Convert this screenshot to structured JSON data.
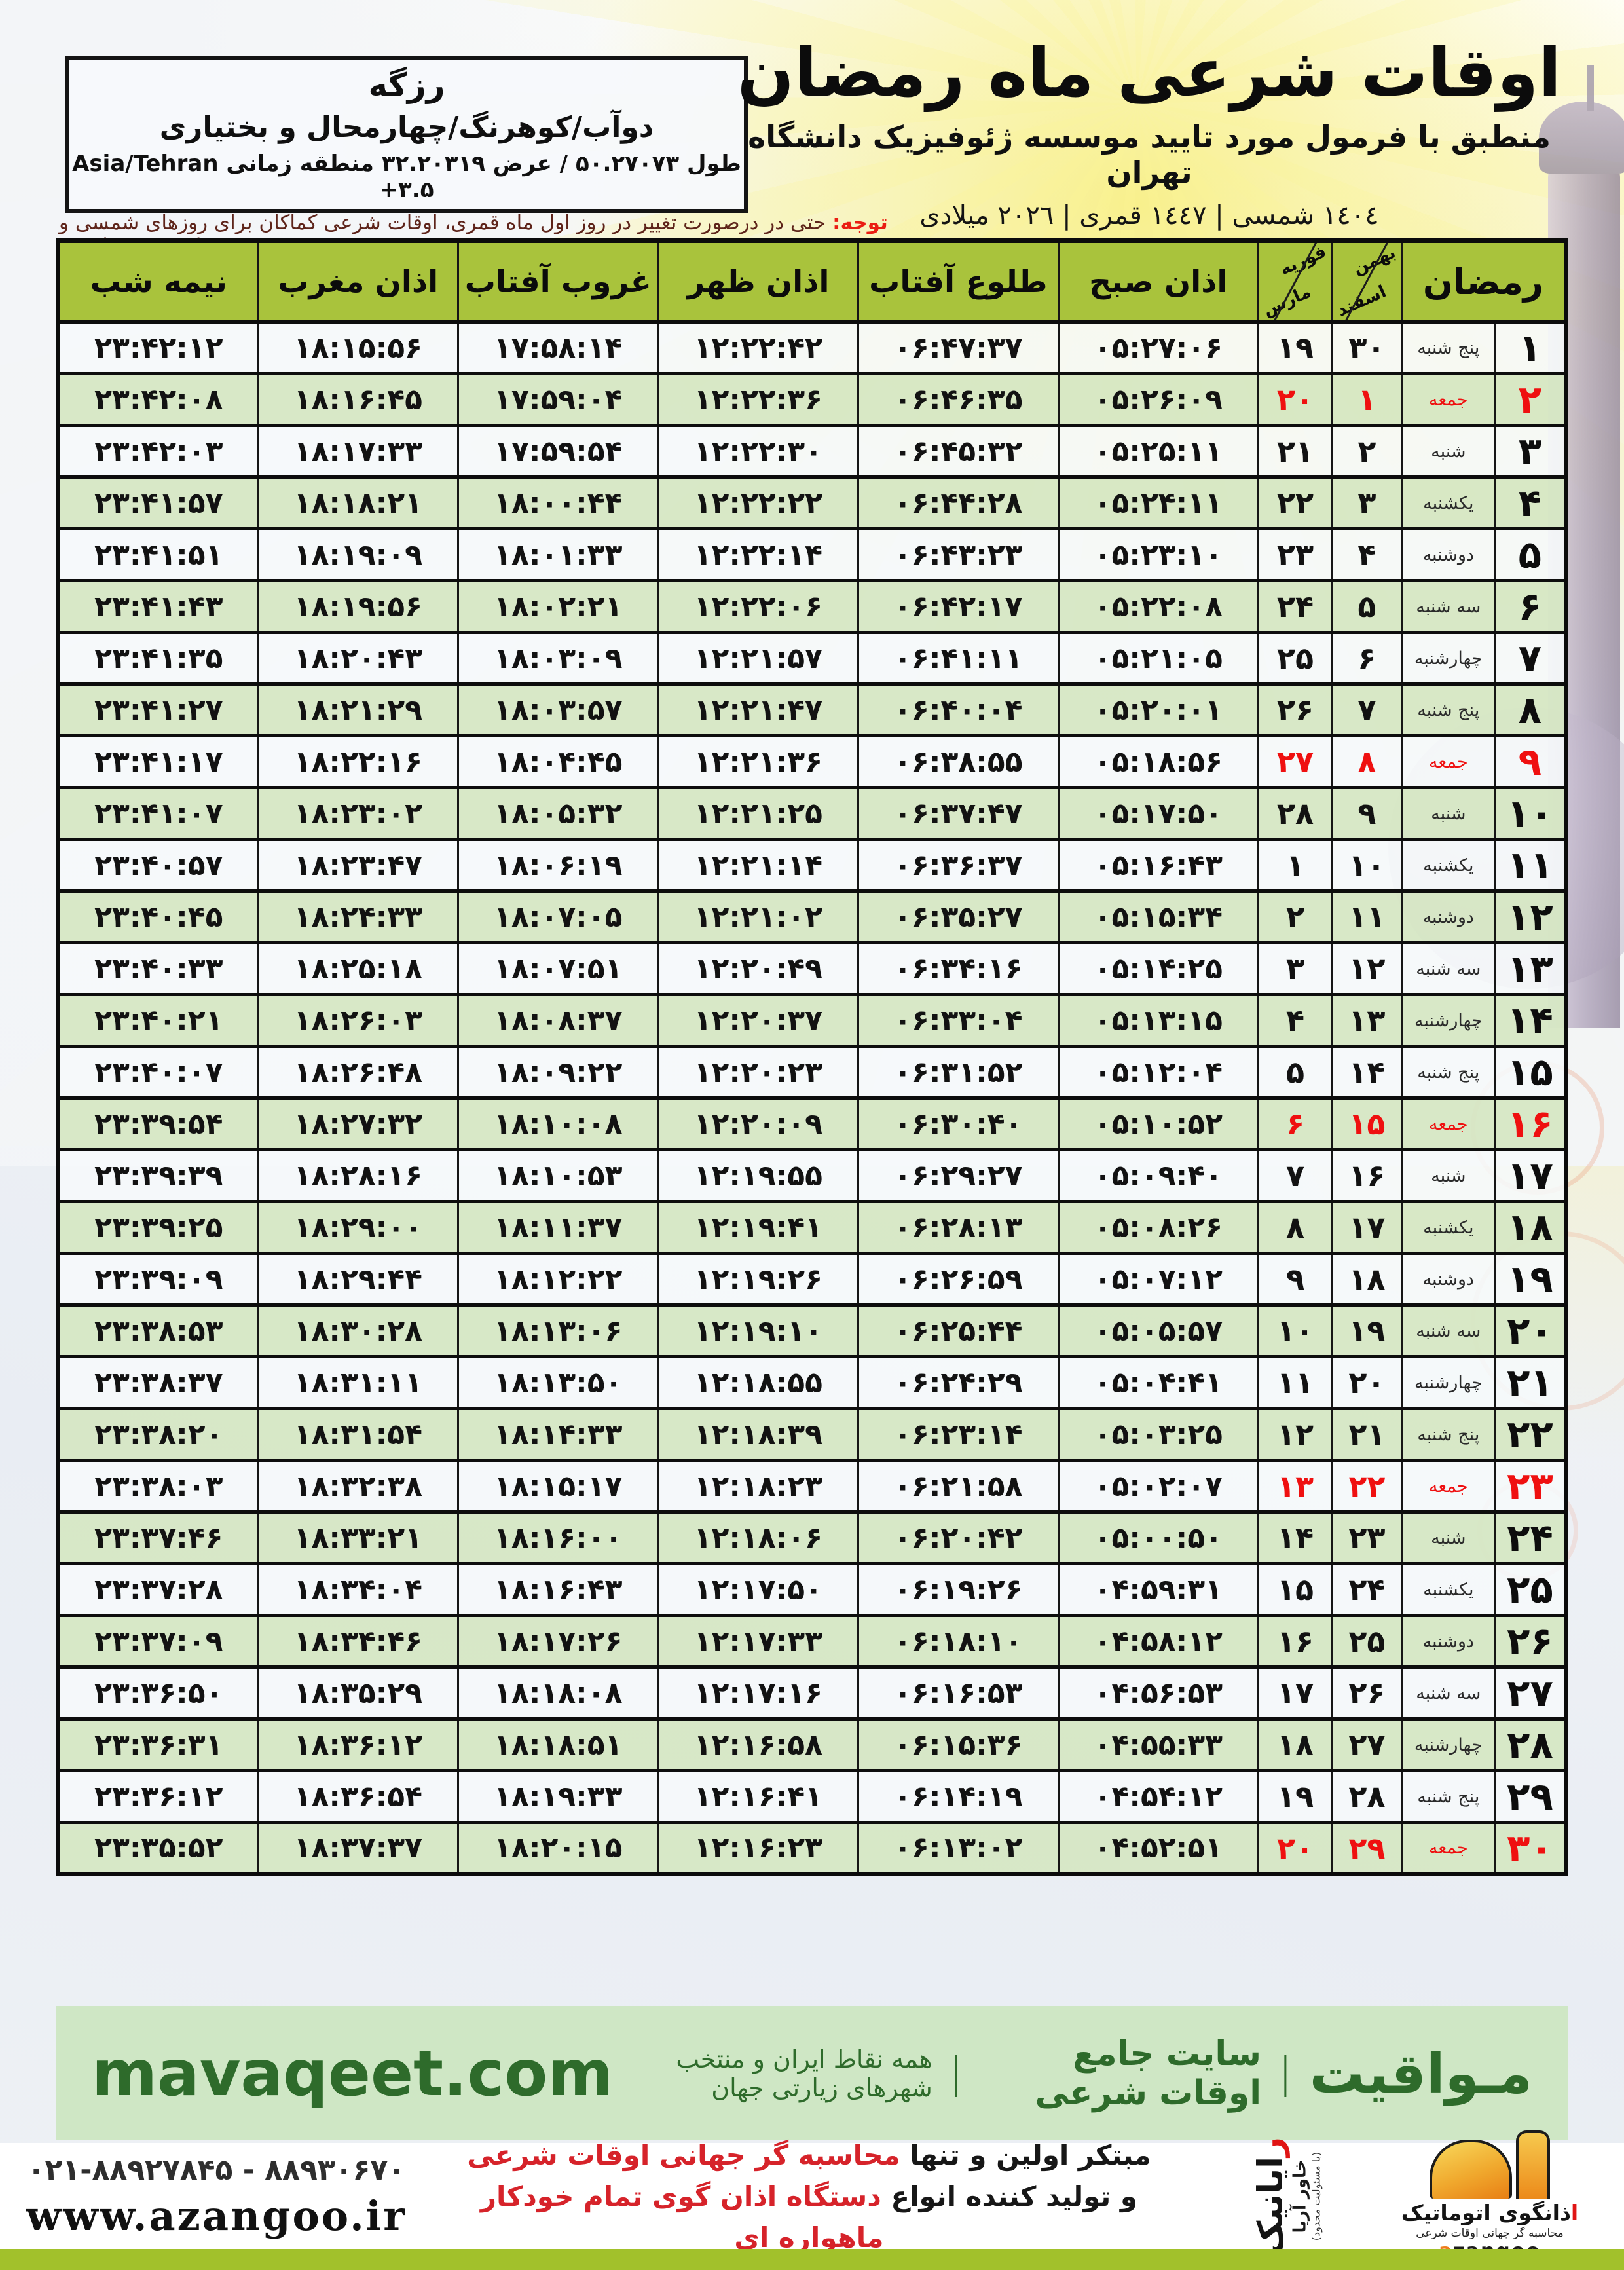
{
  "header": {
    "title": "اوقات شرعی ماه رمضان",
    "subtitle": "منطبق با فرمول مورد تایید موسسه ژئوفیزیک دانشگاه تهران",
    "year_line": "١٤٠٤ شمسی | ١٤٤٧ قمری | ٢٠٢٦ میلادی",
    "location": {
      "city": "رزگه",
      "region": "دوآب/کوهرنگ/چهارمحال و بختیاری",
      "coords_fa": "طول ۵۰.۲۷۰۷۳ / عرض ۳۲.۲۰۳۱۹ منطقه زمانی",
      "timezone": "Asia/Tehran +۳.۵"
    },
    "notice_label": "توجه:",
    "notice_text": "حتی در درصورت تغییر در روز اول ماه قمری، اوقات شرعی کماکان برای روزهای شمسی و میلادی معتبر است."
  },
  "table": {
    "headers": {
      "ramadan": "رمضان",
      "jalali_top": "بهمن",
      "jalali_bottom": "اسفند",
      "greg_top": "فوریه",
      "greg_bottom": "مارس",
      "fajr": "اذان صبح",
      "sunrise": "طلوع آفتاب",
      "dhuhr": "اذان ظهر",
      "sunset": "غروب آفتاب",
      "maghrib": "اذان مغرب",
      "midnight": "نیمه شب"
    },
    "rows": [
      {
        "day": "۱",
        "weekday": "پنج شنبه",
        "jalali": "۳۰",
        "greg": "۱۹",
        "fajr": "۰۵:۲۷:۰۶",
        "sunrise": "۰۶:۴۷:۳۷",
        "dhuhr": "۱۲:۲۲:۴۲",
        "sunset": "۱۷:۵۸:۱۴",
        "maghrib": "۱۸:۱۵:۵۶",
        "midnight": "۲۳:۴۲:۱۲",
        "friday": false
      },
      {
        "day": "۲",
        "weekday": "جمعه",
        "jalali": "۱",
        "greg": "۲۰",
        "fajr": "۰۵:۲۶:۰۹",
        "sunrise": "۰۶:۴۶:۳۵",
        "dhuhr": "۱۲:۲۲:۳۶",
        "sunset": "۱۷:۵۹:۰۴",
        "maghrib": "۱۸:۱۶:۴۵",
        "midnight": "۲۳:۴۲:۰۸",
        "friday": true
      },
      {
        "day": "۳",
        "weekday": "شنبه",
        "jalali": "۲",
        "greg": "۲۱",
        "fajr": "۰۵:۲۵:۱۱",
        "sunrise": "۰۶:۴۵:۳۲",
        "dhuhr": "۱۲:۲۲:۳۰",
        "sunset": "۱۷:۵۹:۵۴",
        "maghrib": "۱۸:۱۷:۳۳",
        "midnight": "۲۳:۴۲:۰۳",
        "friday": false
      },
      {
        "day": "۴",
        "weekday": "یکشنبه",
        "jalali": "۳",
        "greg": "۲۲",
        "fajr": "۰۵:۲۴:۱۱",
        "sunrise": "۰۶:۴۴:۲۸",
        "dhuhr": "۱۲:۲۲:۲۲",
        "sunset": "۱۸:۰۰:۴۴",
        "maghrib": "۱۸:۱۸:۲۱",
        "midnight": "۲۳:۴۱:۵۷",
        "friday": false
      },
      {
        "day": "۵",
        "weekday": "دوشنبه",
        "jalali": "۴",
        "greg": "۲۳",
        "fajr": "۰۵:۲۳:۱۰",
        "sunrise": "۰۶:۴۳:۲۳",
        "dhuhr": "۱۲:۲۲:۱۴",
        "sunset": "۱۸:۰۱:۳۳",
        "maghrib": "۱۸:۱۹:۰۹",
        "midnight": "۲۳:۴۱:۵۱",
        "friday": false
      },
      {
        "day": "۶",
        "weekday": "سه شنبه",
        "jalali": "۵",
        "greg": "۲۴",
        "fajr": "۰۵:۲۲:۰۸",
        "sunrise": "۰۶:۴۲:۱۷",
        "dhuhr": "۱۲:۲۲:۰۶",
        "sunset": "۱۸:۰۲:۲۱",
        "maghrib": "۱۸:۱۹:۵۶",
        "midnight": "۲۳:۴۱:۴۳",
        "friday": false
      },
      {
        "day": "۷",
        "weekday": "چهارشنبه",
        "jalali": "۶",
        "greg": "۲۵",
        "fajr": "۰۵:۲۱:۰۵",
        "sunrise": "۰۶:۴۱:۱۱",
        "dhuhr": "۱۲:۲۱:۵۷",
        "sunset": "۱۸:۰۳:۰۹",
        "maghrib": "۱۸:۲۰:۴۳",
        "midnight": "۲۳:۴۱:۳۵",
        "friday": false
      },
      {
        "day": "۸",
        "weekday": "پنج شنبه",
        "jalali": "۷",
        "greg": "۲۶",
        "fajr": "۰۵:۲۰:۰۱",
        "sunrise": "۰۶:۴۰:۰۴",
        "dhuhr": "۱۲:۲۱:۴۷",
        "sunset": "۱۸:۰۳:۵۷",
        "maghrib": "۱۸:۲۱:۲۹",
        "midnight": "۲۳:۴۱:۲۷",
        "friday": false
      },
      {
        "day": "۹",
        "weekday": "جمعه",
        "jalali": "۸",
        "greg": "۲۷",
        "fajr": "۰۵:۱۸:۵۶",
        "sunrise": "۰۶:۳۸:۵۵",
        "dhuhr": "۱۲:۲۱:۳۶",
        "sunset": "۱۸:۰۴:۴۵",
        "maghrib": "۱۸:۲۲:۱۶",
        "midnight": "۲۳:۴۱:۱۷",
        "friday": true
      },
      {
        "day": "۱۰",
        "weekday": "شنبه",
        "jalali": "۹",
        "greg": "۲۸",
        "fajr": "۰۵:۱۷:۵۰",
        "sunrise": "۰۶:۳۷:۴۷",
        "dhuhr": "۱۲:۲۱:۲۵",
        "sunset": "۱۸:۰۵:۳۲",
        "maghrib": "۱۸:۲۳:۰۲",
        "midnight": "۲۳:۴۱:۰۷",
        "friday": false
      },
      {
        "day": "۱۱",
        "weekday": "یکشنبه",
        "jalali": "۱۰",
        "greg": "۱",
        "fajr": "۰۵:۱۶:۴۳",
        "sunrise": "۰۶:۳۶:۳۷",
        "dhuhr": "۱۲:۲۱:۱۴",
        "sunset": "۱۸:۰۶:۱۹",
        "maghrib": "۱۸:۲۳:۴۷",
        "midnight": "۲۳:۴۰:۵۷",
        "friday": false
      },
      {
        "day": "۱۲",
        "weekday": "دوشنبه",
        "jalali": "۱۱",
        "greg": "۲",
        "fajr": "۰۵:۱۵:۳۴",
        "sunrise": "۰۶:۳۵:۲۷",
        "dhuhr": "۱۲:۲۱:۰۲",
        "sunset": "۱۸:۰۷:۰۵",
        "maghrib": "۱۸:۲۴:۳۳",
        "midnight": "۲۳:۴۰:۴۵",
        "friday": false
      },
      {
        "day": "۱۳",
        "weekday": "سه شنبه",
        "jalali": "۱۲",
        "greg": "۳",
        "fajr": "۰۵:۱۴:۲۵",
        "sunrise": "۰۶:۳۴:۱۶",
        "dhuhr": "۱۲:۲۰:۴۹",
        "sunset": "۱۸:۰۷:۵۱",
        "maghrib": "۱۸:۲۵:۱۸",
        "midnight": "۲۳:۴۰:۳۳",
        "friday": false
      },
      {
        "day": "۱۴",
        "weekday": "چهارشنبه",
        "jalali": "۱۳",
        "greg": "۴",
        "fajr": "۰۵:۱۳:۱۵",
        "sunrise": "۰۶:۳۳:۰۴",
        "dhuhr": "۱۲:۲۰:۳۷",
        "sunset": "۱۸:۰۸:۳۷",
        "maghrib": "۱۸:۲۶:۰۳",
        "midnight": "۲۳:۴۰:۲۱",
        "friday": false
      },
      {
        "day": "۱۵",
        "weekday": "پنج شنبه",
        "jalali": "۱۴",
        "greg": "۵",
        "fajr": "۰۵:۱۲:۰۴",
        "sunrise": "۰۶:۳۱:۵۲",
        "dhuhr": "۱۲:۲۰:۲۳",
        "sunset": "۱۸:۰۹:۲۲",
        "maghrib": "۱۸:۲۶:۴۸",
        "midnight": "۲۳:۴۰:۰۷",
        "friday": false
      },
      {
        "day": "۱۶",
        "weekday": "جمعه",
        "jalali": "۱۵",
        "greg": "۶",
        "fajr": "۰۵:۱۰:۵۲",
        "sunrise": "۰۶:۳۰:۴۰",
        "dhuhr": "۱۲:۲۰:۰۹",
        "sunset": "۱۸:۱۰:۰۸",
        "maghrib": "۱۸:۲۷:۳۲",
        "midnight": "۲۳:۳۹:۵۴",
        "friday": true
      },
      {
        "day": "۱۷",
        "weekday": "شنبه",
        "jalali": "۱۶",
        "greg": "۷",
        "fajr": "۰۵:۰۹:۴۰",
        "sunrise": "۰۶:۲۹:۲۷",
        "dhuhr": "۱۲:۱۹:۵۵",
        "sunset": "۱۸:۱۰:۵۳",
        "maghrib": "۱۸:۲۸:۱۶",
        "midnight": "۲۳:۳۹:۳۹",
        "friday": false
      },
      {
        "day": "۱۸",
        "weekday": "یکشنبه",
        "jalali": "۱۷",
        "greg": "۸",
        "fajr": "۰۵:۰۸:۲۶",
        "sunrise": "۰۶:۲۸:۱۳",
        "dhuhr": "۱۲:۱۹:۴۱",
        "sunset": "۱۸:۱۱:۳۷",
        "maghrib": "۱۸:۲۹:۰۰",
        "midnight": "۲۳:۳۹:۲۵",
        "friday": false
      },
      {
        "day": "۱۹",
        "weekday": "دوشنبه",
        "jalali": "۱۸",
        "greg": "۹",
        "fajr": "۰۵:۰۷:۱۲",
        "sunrise": "۰۶:۲۶:۵۹",
        "dhuhr": "۱۲:۱۹:۲۶",
        "sunset": "۱۸:۱۲:۲۲",
        "maghrib": "۱۸:۲۹:۴۴",
        "midnight": "۲۳:۳۹:۰۹",
        "friday": false
      },
      {
        "day": "۲۰",
        "weekday": "سه شنبه",
        "jalali": "۱۹",
        "greg": "۱۰",
        "fajr": "۰۵:۰۵:۵۷",
        "sunrise": "۰۶:۲۵:۴۴",
        "dhuhr": "۱۲:۱۹:۱۰",
        "sunset": "۱۸:۱۳:۰۶",
        "maghrib": "۱۸:۳۰:۲۸",
        "midnight": "۲۳:۳۸:۵۳",
        "friday": false
      },
      {
        "day": "۲۱",
        "weekday": "چهارشنبه",
        "jalali": "۲۰",
        "greg": "۱۱",
        "fajr": "۰۵:۰۴:۴۱",
        "sunrise": "۰۶:۲۴:۲۹",
        "dhuhr": "۱۲:۱۸:۵۵",
        "sunset": "۱۸:۱۳:۵۰",
        "maghrib": "۱۸:۳۱:۱۱",
        "midnight": "۲۳:۳۸:۳۷",
        "friday": false
      },
      {
        "day": "۲۲",
        "weekday": "پنج شنبه",
        "jalali": "۲۱",
        "greg": "۱۲",
        "fajr": "۰۵:۰۳:۲۵",
        "sunrise": "۰۶:۲۳:۱۴",
        "dhuhr": "۱۲:۱۸:۳۹",
        "sunset": "۱۸:۱۴:۳۳",
        "maghrib": "۱۸:۳۱:۵۴",
        "midnight": "۲۳:۳۸:۲۰",
        "friday": false
      },
      {
        "day": "۲۳",
        "weekday": "جمعه",
        "jalali": "۲۲",
        "greg": "۱۳",
        "fajr": "۰۵:۰۲:۰۷",
        "sunrise": "۰۶:۲۱:۵۸",
        "dhuhr": "۱۲:۱۸:۲۳",
        "sunset": "۱۸:۱۵:۱۷",
        "maghrib": "۱۸:۳۲:۳۸",
        "midnight": "۲۳:۳۸:۰۳",
        "friday": true
      },
      {
        "day": "۲۴",
        "weekday": "شنبه",
        "jalali": "۲۳",
        "greg": "۱۴",
        "fajr": "۰۵:۰۰:۵۰",
        "sunrise": "۰۶:۲۰:۴۲",
        "dhuhr": "۱۲:۱۸:۰۶",
        "sunset": "۱۸:۱۶:۰۰",
        "maghrib": "۱۸:۳۳:۲۱",
        "midnight": "۲۳:۳۷:۴۶",
        "friday": false
      },
      {
        "day": "۲۵",
        "weekday": "یکشنبه",
        "jalali": "۲۴",
        "greg": "۱۵",
        "fajr": "۰۴:۵۹:۳۱",
        "sunrise": "۰۶:۱۹:۲۶",
        "dhuhr": "۱۲:۱۷:۵۰",
        "sunset": "۱۸:۱۶:۴۳",
        "maghrib": "۱۸:۳۴:۰۴",
        "midnight": "۲۳:۳۷:۲۸",
        "friday": false
      },
      {
        "day": "۲۶",
        "weekday": "دوشنبه",
        "jalali": "۲۵",
        "greg": "۱۶",
        "fajr": "۰۴:۵۸:۱۲",
        "sunrise": "۰۶:۱۸:۱۰",
        "dhuhr": "۱۲:۱۷:۳۳",
        "sunset": "۱۸:۱۷:۲۶",
        "maghrib": "۱۸:۳۴:۴۶",
        "midnight": "۲۳:۳۷:۰۹",
        "friday": false
      },
      {
        "day": "۲۷",
        "weekday": "سه شنبه",
        "jalali": "۲۶",
        "greg": "۱۷",
        "fajr": "۰۴:۵۶:۵۳",
        "sunrise": "۰۶:۱۶:۵۳",
        "dhuhr": "۱۲:۱۷:۱۶",
        "sunset": "۱۸:۱۸:۰۸",
        "maghrib": "۱۸:۳۵:۲۹",
        "midnight": "۲۳:۳۶:۵۰",
        "friday": false
      },
      {
        "day": "۲۸",
        "weekday": "چهارشنبه",
        "jalali": "۲۷",
        "greg": "۱۸",
        "fajr": "۰۴:۵۵:۳۳",
        "sunrise": "۰۶:۱۵:۳۶",
        "dhuhr": "۱۲:۱۶:۵۸",
        "sunset": "۱۸:۱۸:۵۱",
        "maghrib": "۱۸:۳۶:۱۲",
        "midnight": "۲۳:۳۶:۳۱",
        "friday": false
      },
      {
        "day": "۲۹",
        "weekday": "پنج شنبه",
        "jalali": "۲۸",
        "greg": "۱۹",
        "fajr": "۰۴:۵۴:۱۲",
        "sunrise": "۰۶:۱۴:۱۹",
        "dhuhr": "۱۲:۱۶:۴۱",
        "sunset": "۱۸:۱۹:۳۳",
        "maghrib": "۱۸:۳۶:۵۴",
        "midnight": "۲۳:۳۶:۱۲",
        "friday": false
      },
      {
        "day": "۳۰",
        "weekday": "جمعه",
        "jalali": "۲۹",
        "greg": "۲۰",
        "fajr": "۰۴:۵۲:۵۱",
        "sunrise": "۰۶:۱۳:۰۲",
        "dhuhr": "۱۲:۱۶:۲۳",
        "sunset": "۱۸:۲۰:۱۵",
        "maghrib": "۱۸:۳۷:۳۷",
        "midnight": "۲۳:۳۵:۵۲",
        "friday": true
      }
    ]
  },
  "footer_bar": {
    "brand_fa": "مـواقیت",
    "sep": "|",
    "desc1": "سایت جامع اوقات شرعی",
    "desc2": "همه نقاط ایران و منتخب شهرهای زیارتی جهان",
    "site_en": "mavaqeet.com"
  },
  "bottom": {
    "phones": "۰۲۱-۸۸۹۲۷۸۴۵ - ۸۸۹۳۰۶۷۰",
    "website": "www.azangoo.ir",
    "line1_black": "مبتکر اولین و تنها",
    "line1_red": "محاسبه گر جهانی اوقات شرعی",
    "line2_black": "و تولید کننده انواع",
    "line2_red": "دستگاه اذان گوی تمام خودکار ماهواره ای",
    "rayanik_r": "ر",
    "rayanik_rest": "ایانیک",
    "rayanik_sub": "خاور آریا",
    "rayanik_note": "(با مسئولیت محدود)",
    "azangoo_alef": "ا",
    "azangoo_fa": "ذانگوی اتوماتیک",
    "azangoo_tagline": "محاسبه گر جهانی اوقات شرعی",
    "azangoo_a": "a",
    "azangoo_rest": "zangoo"
  },
  "colors": {
    "header_green": "#a9c33c",
    "row_green": "#d6e7c4",
    "friday_red": "#ef1010",
    "footer_green_bg": "#cfe7c5",
    "footer_green_text": "#2e6b2b",
    "bottom_bar_green": "#a2c12b"
  }
}
